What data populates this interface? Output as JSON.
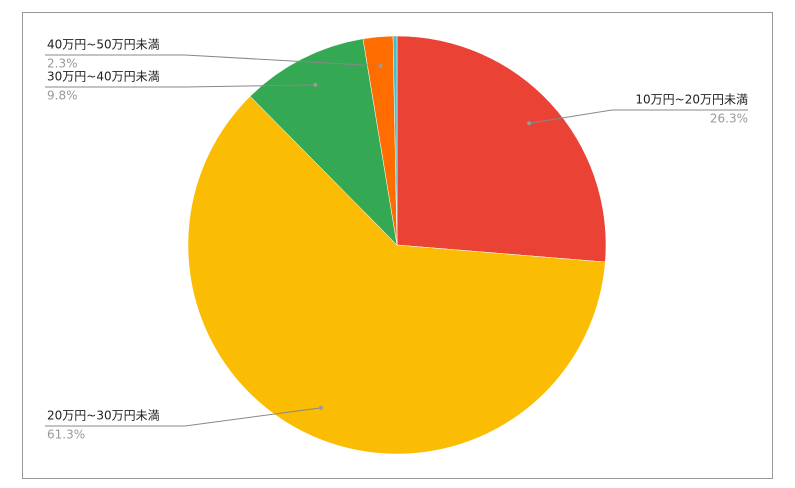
{
  "chart_data": {
    "type": "pie",
    "categories": [
      "10万円~20万円未満",
      "20万円~30万円未満",
      "30万円~40万円未満",
      "40万円~50万円未満",
      null
    ],
    "values": [
      26.3,
      61.3,
      9.8,
      2.3,
      0.3
    ],
    "value_labels": [
      "26.3%",
      "61.3%",
      "9.8%",
      "2.3%",
      null
    ],
    "colors": [
      "#ea4335",
      "#fbbc04",
      "#34a853",
      "#ff6d01",
      "#46bdc6"
    ]
  }
}
